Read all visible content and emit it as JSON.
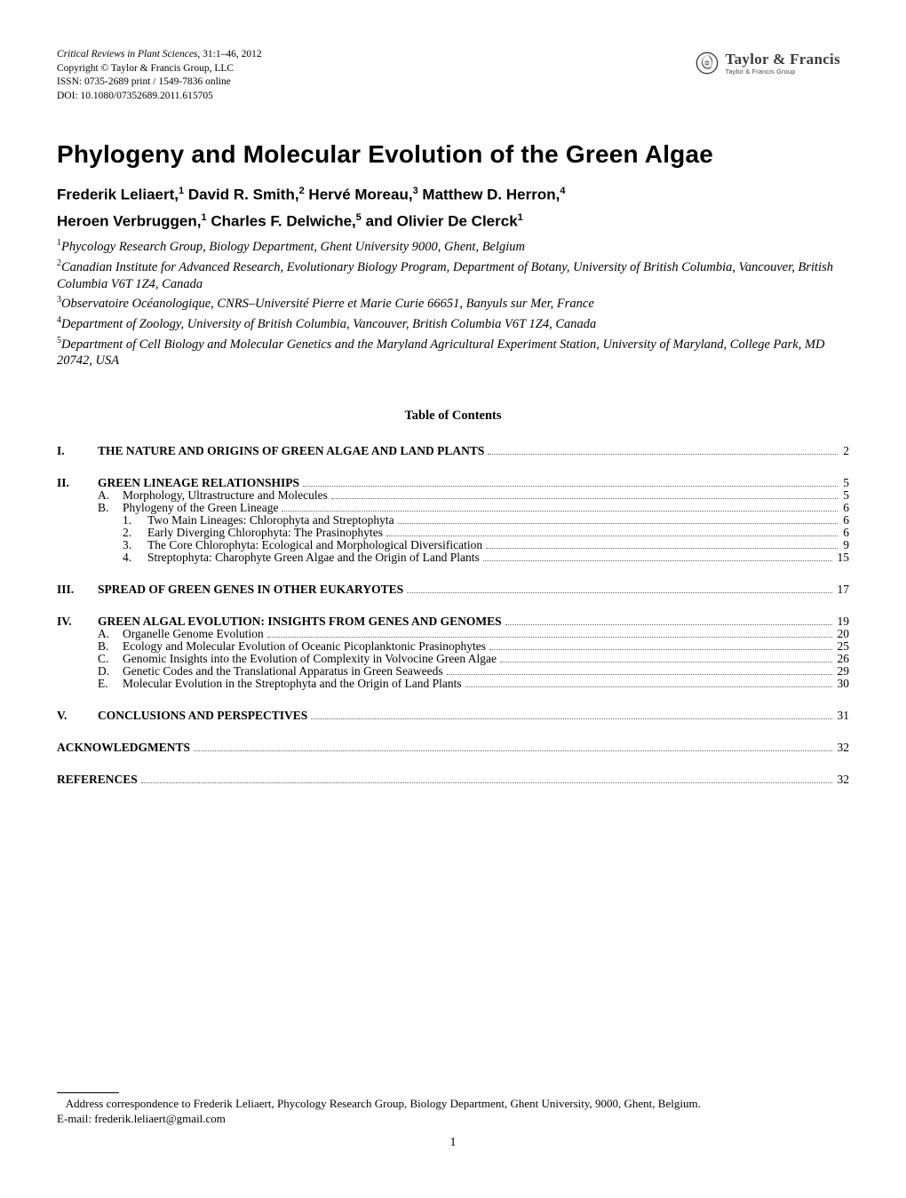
{
  "header": {
    "journal_line1": "Critical Reviews in Plant Sciences",
    "journal_vol": ", 31:1–46, 2012",
    "copyright": "Copyright © Taylor & Francis Group, LLC",
    "issn": "ISSN: 0735-2689 print / 1549-7836 online",
    "doi": "DOI: 10.1080/07352689.2011.615705"
  },
  "logo": {
    "text_main": "Taylor & Francis",
    "text_sub": "Taylor & Francis Group"
  },
  "title": "Phylogeny and Molecular Evolution of the Green Algae",
  "authors_line1_parts": [
    {
      "t": "Frederik Leliaert,",
      "s": "1"
    },
    {
      "t": " David R. Smith,",
      "s": "2"
    },
    {
      "t": " Hervé Moreau,",
      "s": "3"
    },
    {
      "t": " Matthew D. Herron,",
      "s": "4"
    }
  ],
  "authors_line2_parts": [
    {
      "t": "Heroen Verbruggen,",
      "s": "1"
    },
    {
      "t": " Charles F. Delwiche,",
      "s": "5"
    },
    {
      "t": " and Olivier De Clerck",
      "s": "1"
    }
  ],
  "affiliations": [
    {
      "n": "1",
      "t": "Phycology Research Group, Biology Department, Ghent University 9000, Ghent, Belgium"
    },
    {
      "n": "2",
      "t": "Canadian Institute for Advanced Research, Evolutionary Biology Program, Department of Botany, University of British Columbia, Vancouver, British Columbia V6T 1Z4, Canada"
    },
    {
      "n": "3",
      "t": "Observatoire Océanologique, CNRS–Université Pierre et Marie Curie 66651, Banyuls sur Mer, France"
    },
    {
      "n": "4",
      "t": "Department of Zoology, University of British Columbia, Vancouver, British Columbia V6T 1Z4, Canada"
    },
    {
      "n": "5",
      "t": "Department of Cell Biology and Molecular Genetics and the Maryland Agricultural Experiment Station, University of Maryland, College Park, MD 20742, USA"
    }
  ],
  "toc_heading": "Table of Contents",
  "toc": [
    {
      "level": 0,
      "num": "I.",
      "text": "THE NATURE AND ORIGINS OF GREEN ALGAE AND LAND PLANTS",
      "page": "2",
      "bold": true,
      "first": true
    },
    {
      "level": 0,
      "num": "II.",
      "text": "GREEN LINEAGE RELATIONSHIPS",
      "page": "5",
      "bold": true
    },
    {
      "level": 1,
      "num": "A.",
      "text": "Morphology, Ultrastructure and Molecules",
      "page": "5"
    },
    {
      "level": 1,
      "num": "B.",
      "text": "Phylogeny of the Green Lineage",
      "page": "6"
    },
    {
      "level": 2,
      "num": "1.",
      "text": "Two Main Lineages: Chlorophyta and Streptophyta",
      "page": "6"
    },
    {
      "level": 2,
      "num": "2.",
      "text": "Early Diverging Chlorophyta: The Prasinophytes",
      "page": "6"
    },
    {
      "level": 2,
      "num": "3.",
      "text": "The Core Chlorophyta: Ecological and Morphological Diversification",
      "page": "9"
    },
    {
      "level": 2,
      "num": "4.",
      "text": "Streptophyta: Charophyte Green Algae and the Origin of Land Plants",
      "page": "15"
    },
    {
      "level": 0,
      "num": "III.",
      "text": "SPREAD OF GREEN GENES IN OTHER EUKARYOTES",
      "page": "17",
      "bold": true
    },
    {
      "level": 0,
      "num": "IV.",
      "text": "GREEN ALGAL EVOLUTION: INSIGHTS FROM GENES AND GENOMES",
      "page": "19",
      "bold": true
    },
    {
      "level": 1,
      "num": "A.",
      "text": "Organelle Genome Evolution",
      "page": "20"
    },
    {
      "level": 1,
      "num": "B.",
      "text": "Ecology and Molecular Evolution of Oceanic Picoplanktonic Prasinophytes",
      "page": "25"
    },
    {
      "level": 1,
      "num": "C.",
      "text": "Genomic Insights into the Evolution of Complexity in Volvocine Green Algae",
      "page": "26"
    },
    {
      "level": 1,
      "num": "D.",
      "text": "Genetic Codes and the Translational Apparatus in Green Seaweeds",
      "page": "29"
    },
    {
      "level": 1,
      "num": "E.",
      "text": "Molecular Evolution in the Streptophyta and the Origin of Land Plants",
      "page": "30"
    },
    {
      "level": 0,
      "num": "V.",
      "text": "CONCLUSIONS AND PERSPECTIVES",
      "page": "31",
      "bold": true
    },
    {
      "level": -1,
      "num": "",
      "text": "ACKNOWLEDGMENTS",
      "page": "32",
      "bold": true
    },
    {
      "level": -1,
      "num": "",
      "text": "REFERENCES",
      "page": "32",
      "bold": true
    }
  ],
  "footnote": {
    "line1": "Address correspondence to Frederik Leliaert, Phycology Research Group, Biology Department, Ghent University, 9000, Ghent, Belgium.",
    "line2": "E-mail: frederik.leliaert@gmail.com"
  },
  "page_number": "1"
}
